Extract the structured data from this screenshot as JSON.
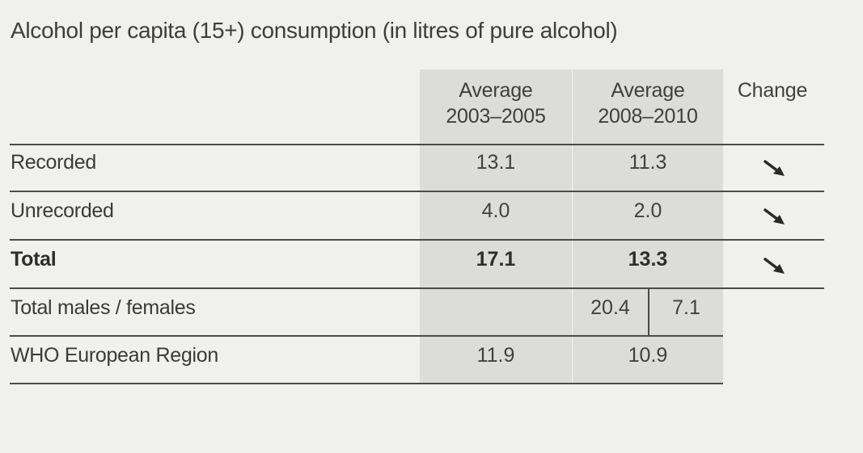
{
  "title": "Alcohol per capita (15+) consumption (in litres of pure alcohol)",
  "headers": {
    "col1_line1": "Average",
    "col1_line2": "2003–2005",
    "col2_line1": "Average",
    "col2_line2": "2008–2010",
    "col3": "Change"
  },
  "rows": [
    {
      "label": "Recorded",
      "v1": "13.1",
      "v2": "11.3",
      "change": "down-right-arrow-icon"
    },
    {
      "label": "Unrecorded",
      "v1": "4.0",
      "v2": "2.0",
      "change": "down-right-arrow-icon"
    },
    {
      "label": "Total",
      "v1": "17.1",
      "v2": "13.3",
      "change": "down-right-arrow-icon"
    }
  ],
  "males_females": {
    "label": "Total males / females",
    "males": "20.4",
    "females": "7.1"
  },
  "who": {
    "label": "WHO European Region",
    "v1": "11.9",
    "v2": "10.9"
  }
}
